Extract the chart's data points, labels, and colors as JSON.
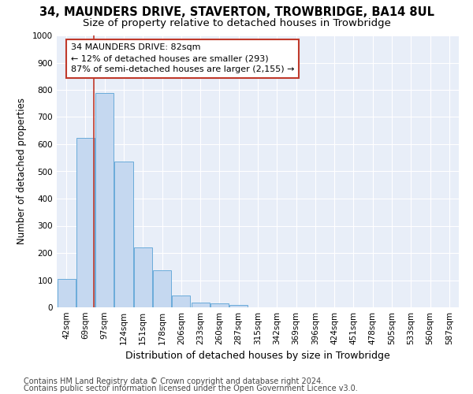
{
  "title": "34, MAUNDERS DRIVE, STAVERTON, TROWBRIDGE, BA14 8UL",
  "subtitle": "Size of property relative to detached houses in Trowbridge",
  "xlabel": "Distribution of detached houses by size in Trowbridge",
  "ylabel": "Number of detached properties",
  "categories": [
    "42sqm",
    "69sqm",
    "97sqm",
    "124sqm",
    "151sqm",
    "178sqm",
    "206sqm",
    "233sqm",
    "260sqm",
    "287sqm",
    "315sqm",
    "342sqm",
    "369sqm",
    "396sqm",
    "424sqm",
    "451sqm",
    "478sqm",
    "505sqm",
    "533sqm",
    "560sqm",
    "587sqm"
  ],
  "values": [
    103,
    622,
    787,
    537,
    220,
    135,
    44,
    18,
    15,
    10,
    0,
    0,
    0,
    0,
    0,
    0,
    0,
    0,
    0,
    0,
    0
  ],
  "bar_color": "#c5d8f0",
  "bar_edge_color": "#6aabda",
  "vline_pos": 1.43,
  "vline_color": "#c0392b",
  "annotation_text": "34 MAUNDERS DRIVE: 82sqm\n← 12% of detached houses are smaller (293)\n87% of semi-detached houses are larger (2,155) →",
  "annotation_box_color": "#ffffff",
  "annotation_box_edge_color": "#c0392b",
  "ylim": [
    0,
    1000
  ],
  "yticks": [
    0,
    100,
    200,
    300,
    400,
    500,
    600,
    700,
    800,
    900,
    1000
  ],
  "footer1": "Contains HM Land Registry data © Crown copyright and database right 2024.",
  "footer2": "Contains public sector information licensed under the Open Government Licence v3.0.",
  "plot_bg_color": "#e8eef8",
  "fig_bg_color": "#ffffff",
  "grid_color": "#ffffff",
  "title_fontsize": 10.5,
  "subtitle_fontsize": 9.5,
  "xlabel_fontsize": 9,
  "ylabel_fontsize": 8.5,
  "tick_fontsize": 7.5,
  "annotation_fontsize": 8,
  "footer_fontsize": 7
}
